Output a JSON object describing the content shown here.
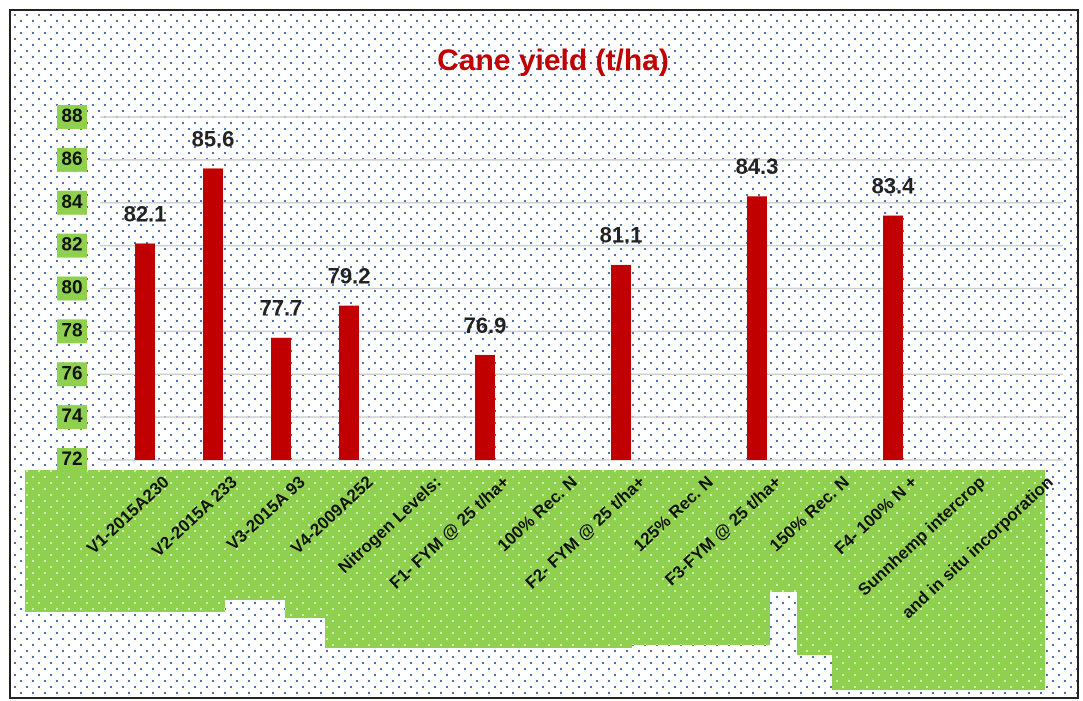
{
  "chart_data": {
    "type": "bar",
    "title": "Cane yield (t/ha)",
    "categories": [
      "V1-2015A230",
      "V2-2015A 233",
      "V3-2015A 93",
      "V4-2009A252",
      "Nitrogen Levels:",
      "F1- FYM @ 25 t/ha+",
      "100% Rec. N",
      "F2- FYM @ 25 t/ha+",
      "125% Rec. N",
      "F3-FYM @ 25 t/ha+",
      "150% Rec. N",
      "F4- 100% N +",
      "Sunnhemp intercrop",
      "and in situ incorporation"
    ],
    "values": [
      82.1,
      85.6,
      77.7,
      79.2,
      null,
      76.9,
      null,
      81.1,
      null,
      84.3,
      null,
      83.4,
      null,
      null
    ],
    "color": "#c00000",
    "ylim": [
      72,
      88
    ],
    "yticks": [
      72,
      74,
      76,
      78,
      80,
      82,
      84,
      86,
      88
    ],
    "grid": true
  }
}
